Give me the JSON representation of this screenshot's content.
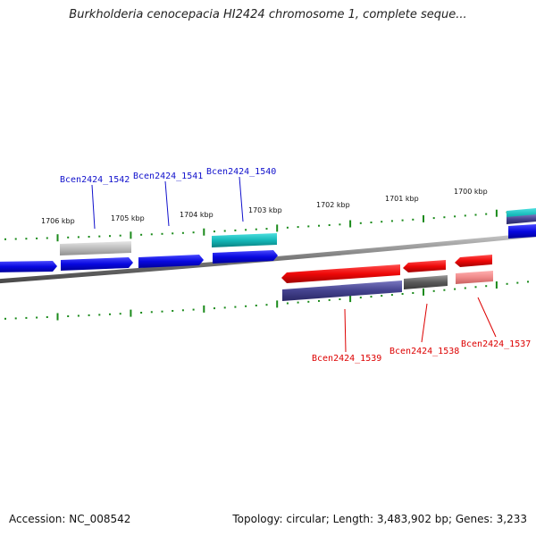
{
  "title": "Burkholderia cenocepacia HI2424 chromosome 1, complete seque...",
  "footer": {
    "accession": "Accession: NC_008542",
    "summary": "Topology: circular; Length: 3,483,902 bp; Genes: 3,233"
  },
  "ticks": [
    "1706 kbp",
    "1705 kbp",
    "1704 kbp",
    "1703 kbp",
    "1702 kbp",
    "1701 kbp",
    "1700 kbp"
  ],
  "genes": [
    {
      "label": "Bcen2424_1542",
      "strand": "forward",
      "color": "#1010cc"
    },
    {
      "label": "Bcen2424_1541",
      "strand": "forward",
      "color": "#1010cc"
    },
    {
      "label": "Bcen2424_1540",
      "strand": "forward",
      "color": "#1010cc"
    },
    {
      "label": "Bcen2424_1539",
      "strand": "reverse",
      "color": "#dd0000"
    },
    {
      "label": "Bcen2424_1538",
      "strand": "reverse",
      "color": "#dd0000"
    },
    {
      "label": "Bcen2424_1537",
      "strand": "reverse",
      "color": "#dd0000"
    }
  ],
  "colors": {
    "forward_cds": "#0a0af0",
    "reverse_cds": "#ee0a0a",
    "backbone": "#888888",
    "ticks": "#1a8a1a"
  }
}
